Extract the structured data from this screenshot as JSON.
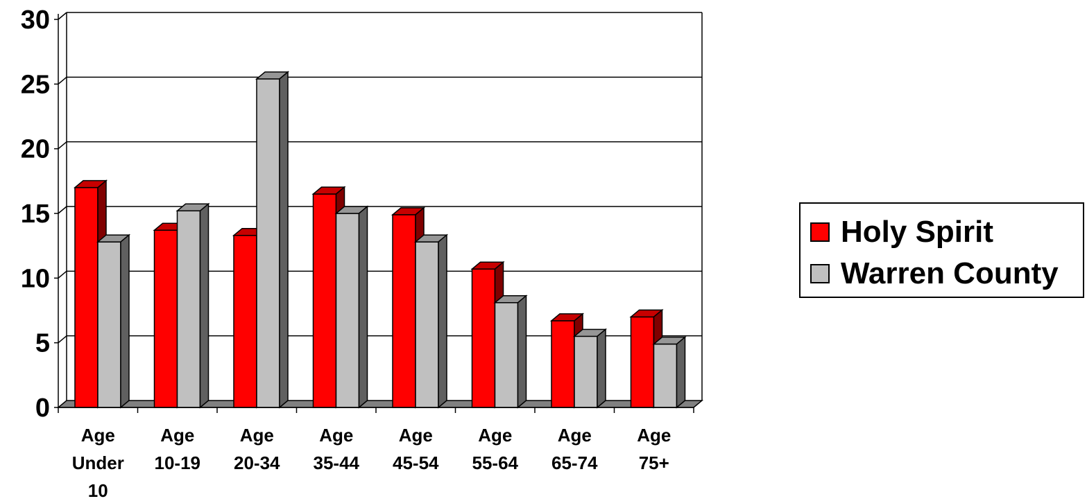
{
  "chart_data": {
    "type": "bar",
    "categories": [
      [
        "Age",
        "Under",
        "10"
      ],
      [
        "Age",
        "10-19"
      ],
      [
        "Age",
        "20-34"
      ],
      [
        "Age",
        "35-44"
      ],
      [
        "Age",
        "45-54"
      ],
      [
        "Age",
        "55-64"
      ],
      [
        "Age",
        "65-74"
      ],
      [
        "Age",
        "75+"
      ]
    ],
    "series": [
      {
        "name": "Holy Spirit",
        "color": "#ff0000",
        "values": [
          17.0,
          13.7,
          13.3,
          16.5,
          14.9,
          10.7,
          6.7,
          7.0
        ]
      },
      {
        "name": "Warren County",
        "color": "#c0c0c0",
        "values": [
          12.8,
          15.2,
          25.4,
          15.0,
          12.8,
          8.1,
          5.5,
          4.9
        ]
      }
    ],
    "ylim": [
      0,
      30
    ],
    "yticks": [
      0,
      5,
      10,
      15,
      20,
      25,
      30
    ],
    "grid": true,
    "legend_position": "right",
    "style": "3d-bar"
  }
}
